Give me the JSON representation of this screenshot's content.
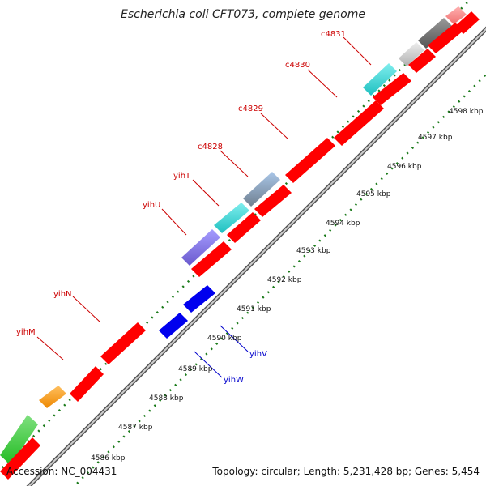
{
  "title": "Escherichia coli CFT073, complete genome",
  "footer": {
    "accession": "Accession: NC_004431",
    "summary": "Topology: circular; Length: 5,231,428 bp; Genes: 5,454"
  },
  "colors": {
    "forward": "#ff0000",
    "reverse": "#0000ee",
    "label_forward": "#cc0000",
    "label_reverse": "#0000cc",
    "tick": "#1a7a1a",
    "backbone": "#888888"
  },
  "tick_labels": [
    "4586 kbp",
    "4587 kbp",
    "4588 kbp",
    "4589 kbp",
    "4590 kbp",
    "4591 kbp",
    "4592 kbp",
    "4593 kbp",
    "4594 kbp",
    "4595 kbp",
    "4596 kbp",
    "4597 kbp",
    "4598 kbp"
  ],
  "gene_labels_forward": [
    "yihM",
    "yihN",
    "yihU",
    "yihT",
    "c4828",
    "c4829",
    "c4830",
    "c4831"
  ],
  "gene_labels_reverse": [
    "yihV",
    "yihW"
  ]
}
